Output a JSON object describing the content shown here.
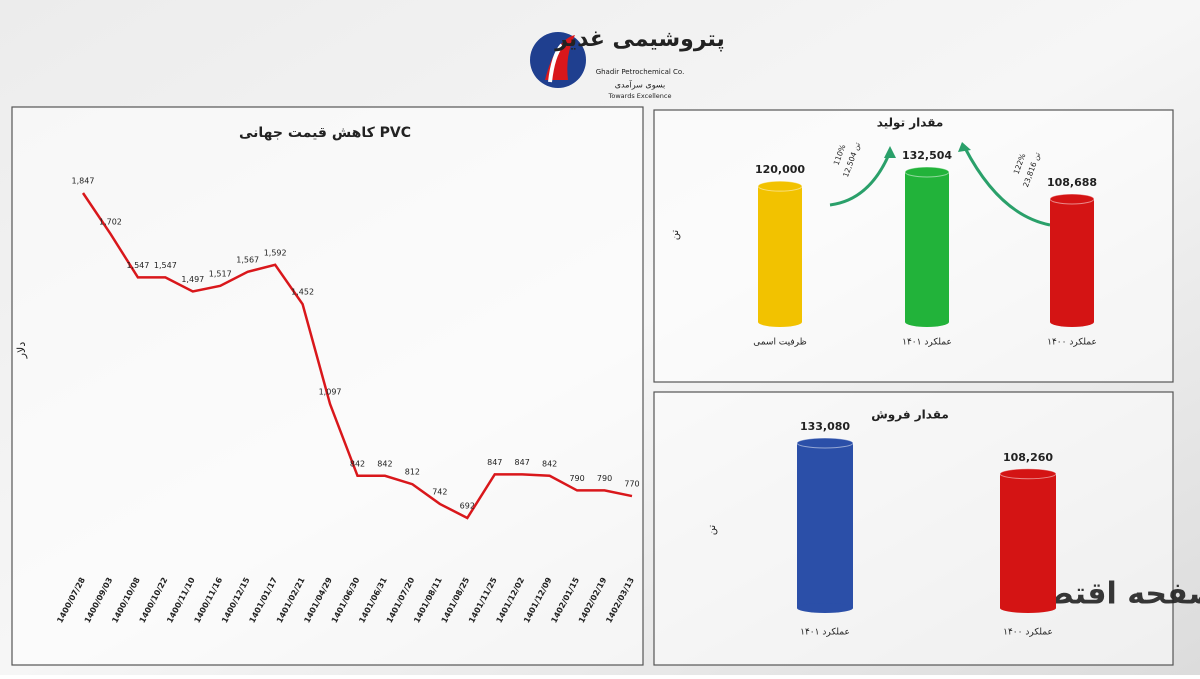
{
  "header": {
    "logo_name": "پتروشیمی غدیر",
    "company_en": "Ghadir Petrochemical Co.",
    "slogan_fa": "بسوی سرآمدی",
    "slogan_en": "Towards Excellence"
  },
  "watermark": "صفحه اقتصاد",
  "chart_data": [
    {
      "type": "line",
      "title": "کاهش قیمت جهانی PVC",
      "y_label": "دلار",
      "color": "#d9171b",
      "categories": [
        "1400/07/28",
        "1400/09/03",
        "1400/10/08",
        "1400/10/22",
        "1400/11/10",
        "1400/11/16",
        "1400/12/15",
        "1401/01/17",
        "1401/02/21",
        "1401/04/29",
        "1401/06/30",
        "1401/06/31",
        "1401/07/20",
        "1401/08/11",
        "1401/08/25",
        "1401/11/25",
        "1401/12/02",
        "1401/12/09",
        "1402/01/15",
        "1402/02/19",
        "1402/03/13"
      ],
      "values": [
        1847,
        1702,
        1547,
        1547,
        1497,
        1517,
        1567,
        1592,
        1452,
        1097,
        842,
        842,
        812,
        742,
        692,
        847,
        847,
        842,
        790,
        790,
        770
      ],
      "value_labels": [
        "1,847",
        "1,702",
        "1,547",
        "1,547",
        "1,497",
        "1,517",
        "1,567",
        "1,592",
        "1,452",
        "1,097",
        "842",
        "842",
        "812",
        "742",
        "692",
        "847",
        "847",
        "842",
        "790",
        "790",
        "770"
      ]
    },
    {
      "type": "bar",
      "title": "مقدار تولید",
      "y_label": "تن",
      "categories": [
        "ظرفیت اسمی",
        "عملکرد ۱۴۰۱",
        "عملکرد ۱۴۰۰"
      ],
      "values": [
        120000,
        132504,
        108688
      ],
      "value_labels": [
        "120,000",
        "132,504",
        "108,688"
      ],
      "colors": [
        "#f2c200",
        "#22b33a",
        "#d41414"
      ],
      "annotations": [
        {
          "percent": "110%",
          "amount": "12,504 تن"
        },
        {
          "percent": "122%",
          "amount": "23,816 تن"
        }
      ]
    },
    {
      "type": "bar",
      "title": "مقدار فروش",
      "y_label": "تن",
      "categories": [
        "عملکرد ۱۴۰۱",
        "عملکرد ۱۴۰۰"
      ],
      "values": [
        133080,
        108260
      ],
      "value_labels": [
        "133,080",
        "108,260"
      ],
      "colors": [
        "#2b4fa8",
        "#d41414"
      ]
    }
  ]
}
